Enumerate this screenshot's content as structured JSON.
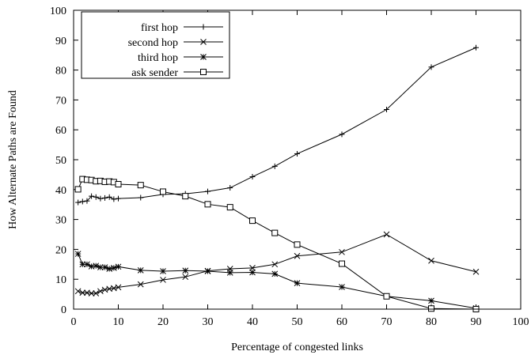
{
  "chart_data": {
    "type": "line",
    "title": "",
    "xlabel": "Percentage of congested links",
    "ylabel": "How Alternate Paths are Found",
    "xlim": [
      0,
      100
    ],
    "ylim": [
      0,
      100
    ],
    "xticks": [
      0,
      10,
      20,
      30,
      40,
      50,
      60,
      70,
      80,
      90,
      100
    ],
    "yticks": [
      0,
      10,
      20,
      30,
      40,
      50,
      60,
      70,
      80,
      90,
      100
    ],
    "grid": false,
    "legend_position": "top-left",
    "series": [
      {
        "name": "first hop",
        "marker": "plus",
        "color": "#000000",
        "points": [
          [
            1,
            35.7
          ],
          [
            2,
            36
          ],
          [
            3,
            36.2
          ],
          [
            4,
            37.8
          ],
          [
            5,
            37.5
          ],
          [
            6,
            37
          ],
          [
            7,
            37.2
          ],
          [
            8,
            37.5
          ],
          [
            9,
            36.8
          ],
          [
            10,
            37
          ],
          [
            15,
            37.3
          ],
          [
            20,
            38.4
          ],
          [
            25,
            38.6
          ],
          [
            30,
            39.4
          ],
          [
            35,
            40.6
          ],
          [
            40,
            44.3
          ],
          [
            45,
            47.8
          ],
          [
            50,
            52
          ],
          [
            60,
            58.5
          ],
          [
            70,
            66.8
          ],
          [
            80,
            81
          ],
          [
            90,
            87.5
          ]
        ]
      },
      {
        "name": "second hop",
        "marker": "x",
        "color": "#000000",
        "points": [
          [
            1,
            6
          ],
          [
            2,
            5.5
          ],
          [
            3,
            5.5
          ],
          [
            4,
            5.3
          ],
          [
            5,
            5.3
          ],
          [
            6,
            6
          ],
          [
            7,
            6.5
          ],
          [
            8,
            6.8
          ],
          [
            9,
            7
          ],
          [
            10,
            7.3
          ],
          [
            15,
            8.3
          ],
          [
            20,
            9.8
          ],
          [
            25,
            10.8
          ],
          [
            30,
            12.8
          ],
          [
            35,
            13.5
          ],
          [
            40,
            13.8
          ],
          [
            45,
            15
          ],
          [
            50,
            17.8
          ],
          [
            60,
            19.1
          ],
          [
            70,
            25
          ],
          [
            80,
            16.2
          ],
          [
            90,
            12.5
          ]
        ]
      },
      {
        "name": "third hop",
        "marker": "asterisk",
        "color": "#000000",
        "points": [
          [
            1,
            18.5
          ],
          [
            2,
            15
          ],
          [
            3,
            15
          ],
          [
            4,
            14.3
          ],
          [
            5,
            14.5
          ],
          [
            6,
            14
          ],
          [
            7,
            14
          ],
          [
            8,
            13.5
          ],
          [
            9,
            13.8
          ],
          [
            10,
            14.2
          ],
          [
            15,
            13
          ],
          [
            20,
            12.7
          ],
          [
            25,
            12.9
          ],
          [
            30,
            12.7
          ],
          [
            35,
            12.2
          ],
          [
            40,
            12.3
          ],
          [
            45,
            11.8
          ],
          [
            50,
            8.7
          ],
          [
            60,
            7.4
          ],
          [
            70,
            4.3
          ],
          [
            80,
            2.8
          ],
          [
            90,
            0.3
          ]
        ]
      },
      {
        "name": "ask sender",
        "marker": "square",
        "color": "#000000",
        "points": [
          [
            1,
            40.1
          ],
          [
            2,
            43.5
          ],
          [
            3,
            43.3
          ],
          [
            4,
            43.2
          ],
          [
            5,
            42.8
          ],
          [
            6,
            42.9
          ],
          [
            7,
            42.6
          ],
          [
            8,
            42.7
          ],
          [
            9,
            42.5
          ],
          [
            10,
            41.8
          ],
          [
            15,
            41.5
          ],
          [
            20,
            39.3
          ],
          [
            25,
            37.8
          ],
          [
            30,
            35.1
          ],
          [
            35,
            34.1
          ],
          [
            40,
            29.6
          ],
          [
            45,
            25.5
          ],
          [
            50,
            21.6
          ],
          [
            60,
            15.2
          ],
          [
            70,
            4.3
          ],
          [
            80,
            0.2
          ],
          [
            90,
            0
          ]
        ]
      }
    ]
  }
}
